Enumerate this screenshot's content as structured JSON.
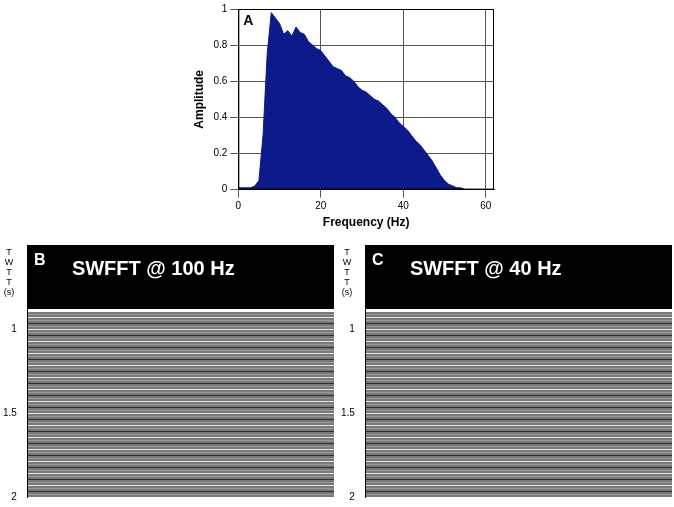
{
  "chart_data": {
    "type": "area",
    "panel_label": "A",
    "x_label": "Frequency (Hz)",
    "y_label": "Amplitude",
    "x": [
      0,
      1,
      2,
      3,
      4,
      5,
      6,
      7,
      8,
      9,
      10,
      11,
      12,
      13,
      14,
      15,
      16,
      17,
      18,
      19,
      20,
      21,
      22,
      23,
      24,
      25,
      26,
      27,
      28,
      29,
      30,
      31,
      32,
      33,
      34,
      35,
      36,
      37,
      38,
      39,
      40,
      41,
      42,
      43,
      44,
      45,
      46,
      47,
      48,
      49,
      50,
      51,
      52,
      53,
      54,
      55,
      56,
      57,
      58,
      59,
      60
    ],
    "values": [
      0.01,
      0.01,
      0.01,
      0.01,
      0.02,
      0.05,
      0.3,
      0.75,
      0.98,
      0.95,
      0.92,
      0.86,
      0.88,
      0.85,
      0.9,
      0.87,
      0.86,
      0.82,
      0.8,
      0.78,
      0.77,
      0.74,
      0.71,
      0.68,
      0.67,
      0.66,
      0.63,
      0.62,
      0.6,
      0.57,
      0.55,
      0.54,
      0.52,
      0.5,
      0.49,
      0.47,
      0.45,
      0.42,
      0.4,
      0.37,
      0.35,
      0.33,
      0.3,
      0.27,
      0.25,
      0.22,
      0.19,
      0.16,
      0.12,
      0.08,
      0.05,
      0.03,
      0.02,
      0.01,
      0.01,
      0,
      0,
      0,
      0,
      0,
      0
    ],
    "color": "#0d1a8a",
    "xlim": [
      0,
      62
    ],
    "xticks": [
      0,
      20,
      40,
      60
    ],
    "ylim": [
      0,
      1
    ],
    "yticks": [
      0,
      0.2,
      0.4,
      0.6,
      0.8,
      1
    ],
    "grid": true
  },
  "images": [
    {
      "panel_label": "B",
      "title": "SWFFT @ 100 Hz",
      "y_label": "TWTT (s)",
      "ylim": [
        0.5,
        2
      ],
      "yticks": [
        1,
        1.5,
        2
      ]
    },
    {
      "panel_label": "C",
      "title": "SWFFT @ 40 Hz",
      "y_label": "TWTT (s)",
      "ylim": [
        0.5,
        2
      ],
      "yticks": [
        1,
        1.5,
        2
      ]
    }
  ]
}
